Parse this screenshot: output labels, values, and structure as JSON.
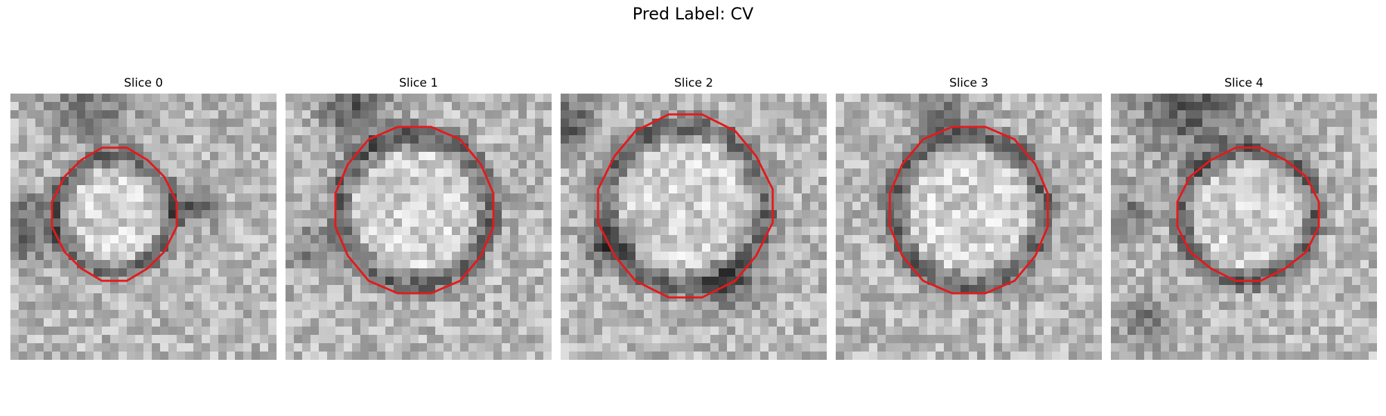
{
  "figure": {
    "title": "Pred Label: CV"
  },
  "contour_color": "#e31a1c",
  "slices": [
    {
      "title": "Slice 0"
    },
    {
      "title": "Slice 1"
    },
    {
      "title": "Slice 2"
    },
    {
      "title": "Slice 3"
    },
    {
      "title": "Slice 4"
    }
  ]
}
